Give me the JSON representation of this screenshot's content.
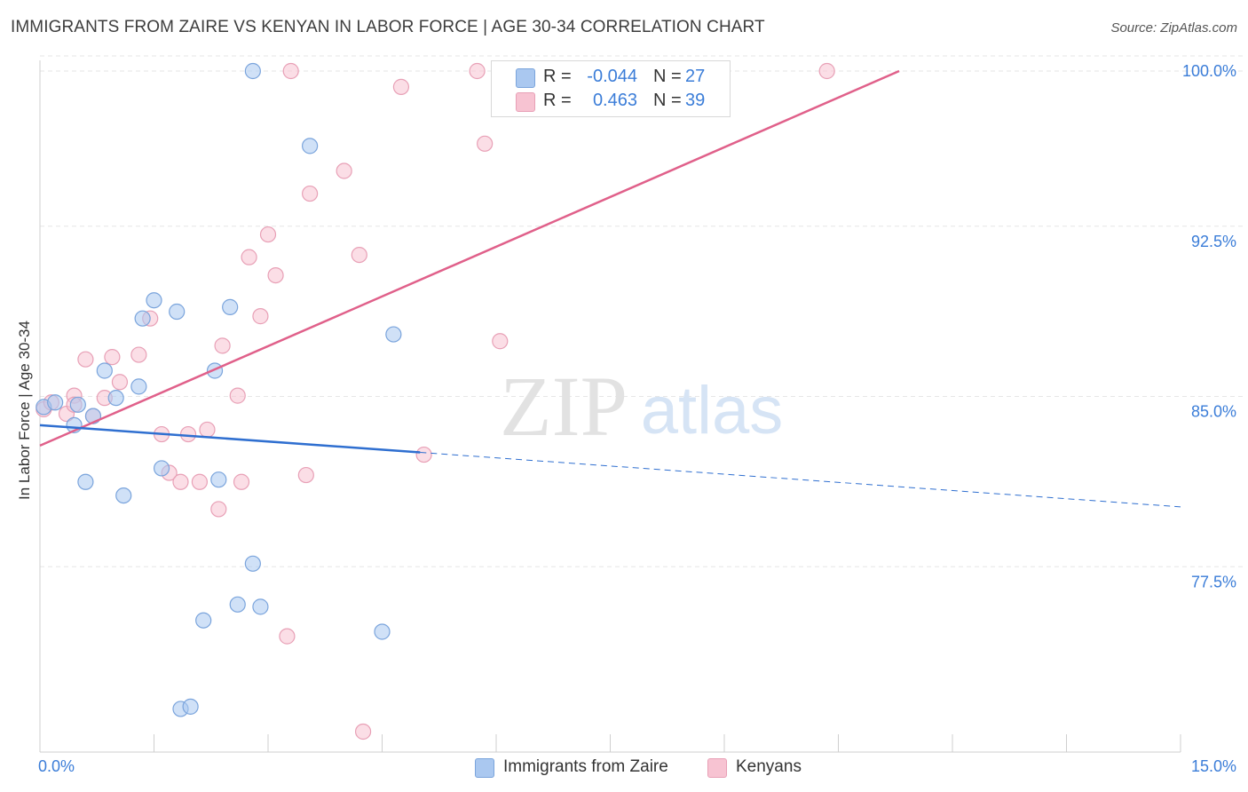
{
  "title": "IMMIGRANTS FROM ZAIRE VS KENYAN IN LABOR FORCE | AGE 30-34 CORRELATION CHART",
  "source": "Source: ZipAtlas.com",
  "watermark": {
    "zip": "ZIP",
    "atlas": "atlas"
  },
  "legend": {
    "r_label": "R =",
    "n_label": "N =",
    "rows": [
      {
        "r": "-0.044",
        "n": "27"
      },
      {
        "r": "0.463",
        "n": "39"
      }
    ]
  },
  "bottom_legend": [
    "Immigrants from Zaire",
    "Kenyans"
  ],
  "chart_data": {
    "type": "scatter",
    "title": "IMMIGRANTS FROM ZAIRE VS KENYAN IN LABOR FORCE | AGE 30-34 CORRELATION CHART",
    "xlabel": "",
    "ylabel": "In Labor Force | Age 30-34",
    "xlim": [
      0.0,
      15.0
    ],
    "ylim": [
      70.0,
      100.0
    ],
    "x_tick_labels": [
      "0.0%",
      "15.0%"
    ],
    "y_ticks": [
      77.5,
      85.0,
      92.5,
      100.0
    ],
    "y_tick_labels": [
      "77.5%",
      "85.0%",
      "92.5%",
      "100.0%"
    ],
    "grid": "horizontal dashed",
    "legend_position": "top-center",
    "colors": {
      "zaire_fill": "#aac8f0",
      "zaire_stroke": "#7aa4dc",
      "zaire_line": "#2f6fd0",
      "kenyan_fill": "#f7c3d2",
      "kenyan_stroke": "#e8a0b6",
      "kenyan_line": "#e0608a",
      "tick_label": "#3b7dd8"
    },
    "series": [
      {
        "name": "Immigrants from Zaire",
        "r": -0.044,
        "n": 27,
        "points": [
          [
            0.05,
            85.2
          ],
          [
            0.2,
            85.4
          ],
          [
            0.5,
            85.3
          ],
          [
            0.45,
            84.4
          ],
          [
            0.7,
            84.8
          ],
          [
            0.85,
            86.8
          ],
          [
            1.0,
            85.6
          ],
          [
            1.3,
            86.1
          ],
          [
            1.35,
            89.1
          ],
          [
            1.5,
            89.9
          ],
          [
            1.8,
            89.4
          ],
          [
            2.3,
            86.8
          ],
          [
            2.5,
            89.6
          ],
          [
            1.6,
            82.5
          ],
          [
            2.35,
            82.0
          ],
          [
            0.6,
            81.9
          ],
          [
            1.1,
            81.3
          ],
          [
            2.8,
            78.3
          ],
          [
            2.6,
            76.5
          ],
          [
            2.9,
            76.4
          ],
          [
            2.15,
            75.8
          ],
          [
            4.5,
            75.3
          ],
          [
            1.85,
            71.9
          ],
          [
            1.98,
            72.0
          ],
          [
            2.8,
            100.0
          ],
          [
            3.55,
            96.7
          ],
          [
            4.65,
            88.4
          ]
        ],
        "trend": {
          "x": [
            0.0,
            5.0
          ],
          "y": [
            84.4,
            83.2
          ]
        },
        "trend_dashed": {
          "x": [
            5.0,
            15.0
          ],
          "y": [
            83.2,
            80.8
          ]
        }
      },
      {
        "name": "Kenyans",
        "r": 0.463,
        "n": 39,
        "points": [
          [
            0.05,
            85.1
          ],
          [
            0.15,
            85.4
          ],
          [
            0.35,
            84.9
          ],
          [
            0.45,
            85.7
          ],
          [
            0.6,
            87.3
          ],
          [
            0.7,
            84.8
          ],
          [
            0.85,
            85.6
          ],
          [
            0.95,
            87.4
          ],
          [
            1.05,
            86.3
          ],
          [
            1.3,
            87.5
          ],
          [
            1.45,
            89.1
          ],
          [
            1.6,
            84.0
          ],
          [
            1.7,
            82.3
          ],
          [
            1.85,
            81.9
          ],
          [
            1.95,
            84.0
          ],
          [
            2.1,
            81.9
          ],
          [
            2.2,
            84.2
          ],
          [
            2.35,
            80.7
          ],
          [
            2.4,
            87.9
          ],
          [
            2.6,
            85.7
          ],
          [
            2.65,
            81.9
          ],
          [
            2.75,
            91.8
          ],
          [
            2.9,
            89.2
          ],
          [
            3.0,
            92.8
          ],
          [
            3.1,
            91.0
          ],
          [
            3.25,
            75.1
          ],
          [
            3.5,
            82.2
          ],
          [
            3.55,
            94.6
          ],
          [
            4.0,
            95.6
          ],
          [
            4.2,
            91.9
          ],
          [
            4.25,
            70.9
          ],
          [
            4.75,
            99.3
          ],
          [
            5.05,
            83.1
          ],
          [
            3.3,
            100.0
          ],
          [
            5.75,
            100.0
          ],
          [
            5.85,
            96.8
          ],
          [
            6.05,
            88.1
          ],
          [
            10.35,
            100.0
          ],
          [
            0.45,
            85.3
          ]
        ],
        "trend": {
          "x": [
            0.0,
            11.3
          ],
          "y": [
            83.5,
            100.0
          ]
        }
      }
    ]
  }
}
